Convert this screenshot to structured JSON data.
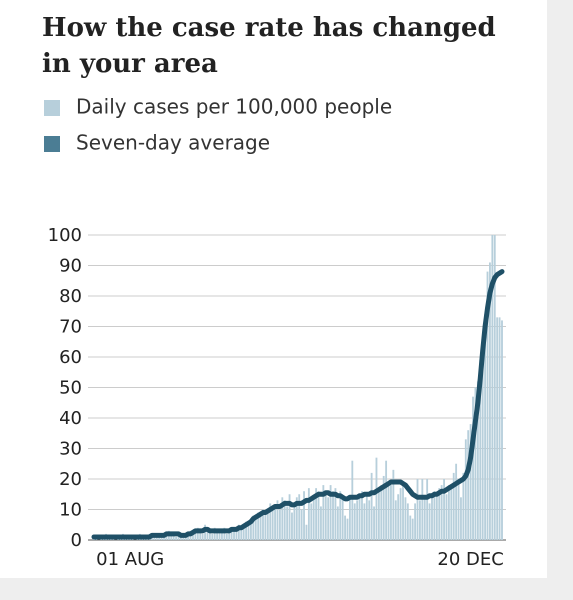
{
  "chart_data": {
    "type": "bar-line",
    "title": "How the case rate has changed in your area",
    "title_lines": [
      "How the case rate has changed",
      "in your area"
    ],
    "categories": [
      null,
      null,
      null,
      null,
      null,
      null,
      null,
      null,
      null,
      null,
      null,
      null,
      null,
      null,
      null,
      "01 AUG",
      null,
      null,
      null,
      null,
      null,
      null,
      null,
      null,
      null,
      null,
      null,
      null,
      null,
      null,
      null,
      null,
      null,
      null,
      null,
      null,
      null,
      null,
      null,
      null,
      null,
      null,
      null,
      null,
      null,
      null,
      null,
      null,
      null,
      null,
      null,
      null,
      null,
      null,
      null,
      null,
      null,
      null,
      null,
      null,
      null,
      null,
      null,
      null,
      null,
      null,
      null,
      null,
      null,
      null,
      null,
      null,
      null,
      null,
      null,
      null,
      null,
      null,
      null,
      null,
      null,
      null,
      null,
      null,
      null,
      null,
      null,
      null,
      null,
      null,
      null,
      null,
      null,
      null,
      null,
      null,
      null,
      null,
      null,
      null,
      null,
      null,
      null,
      null,
      null,
      null,
      null,
      null,
      null,
      null,
      null,
      null,
      null,
      null,
      null,
      null,
      null,
      null,
      null,
      null,
      null,
      null,
      null,
      null,
      null,
      null,
      null,
      null,
      null,
      null,
      null,
      null,
      null,
      null,
      null,
      null,
      null,
      null,
      null,
      null,
      null,
      null,
      null,
      null,
      null,
      null,
      null,
      null,
      null,
      null,
      null,
      null,
      null,
      null,
      null,
      null,
      "20 DEC",
      null,
      null,
      null,
      null,
      null,
      null,
      null,
      null,
      null,
      null,
      null,
      null,
      null
    ],
    "series": [
      {
        "name": "Daily cases per 100,000 people",
        "type": "bar",
        "color": "#b7cfdb",
        "values": [
          1,
          1,
          0,
          1,
          1,
          2,
          1,
          1,
          1,
          0,
          1,
          1,
          2,
          1,
          1,
          1,
          1,
          0,
          1,
          2,
          1,
          1,
          1,
          2,
          1,
          2,
          1,
          1,
          2,
          2,
          2,
          3,
          2,
          2,
          1,
          2,
          1,
          2,
          1,
          2,
          3,
          2,
          3,
          4,
          3,
          2,
          5,
          3,
          3,
          2,
          4,
          3,
          3,
          3,
          4,
          2,
          3,
          4,
          3,
          4,
          5,
          4,
          5,
          6,
          6,
          6,
          8,
          7,
          9,
          8,
          10,
          9,
          10,
          12,
          10,
          11,
          13,
          10,
          14,
          13,
          11,
          15,
          9,
          11,
          14,
          15,
          10,
          16,
          5,
          17,
          12,
          14,
          17,
          16,
          11,
          18,
          16,
          14,
          18,
          16,
          17,
          11,
          16,
          14,
          8,
          7,
          14,
          26,
          12,
          13,
          14,
          16,
          12,
          15,
          13,
          22,
          11,
          27,
          17,
          18,
          21,
          26,
          19,
          18,
          23,
          13,
          15,
          17,
          18,
          14,
          12,
          8,
          7,
          12,
          20,
          13,
          20,
          14,
          20,
          12,
          14,
          16,
          15,
          17,
          18,
          20,
          15,
          18,
          17,
          22,
          25,
          20,
          14,
          22,
          33,
          36,
          38,
          47,
          50,
          52,
          59,
          60,
          74,
          88,
          91,
          100,
          100,
          73,
          73,
          72
        ]
      },
      {
        "name": "Seven-day average",
        "type": "line",
        "color": "#1f5067",
        "values": [
          1,
          1,
          1,
          1,
          1,
          1,
          1,
          1,
          1,
          1,
          1,
          1,
          1,
          1,
          1,
          1,
          1,
          1,
          1,
          1,
          1,
          1,
          1,
          1,
          1.5,
          1.5,
          1.5,
          1.5,
          1.5,
          1.5,
          2,
          2,
          2,
          2,
          2,
          2,
          1.5,
          1.5,
          1.5,
          2,
          2,
          2.5,
          3,
          3,
          3,
          3,
          3.5,
          3.5,
          3,
          3,
          3,
          3,
          3,
          3,
          3,
          3,
          3,
          3.5,
          3.5,
          3.5,
          4,
          4,
          4.5,
          5,
          5.5,
          6,
          7,
          7.5,
          8,
          8.5,
          9,
          9,
          9.5,
          10,
          10.5,
          11,
          11,
          11,
          11.5,
          12,
          12,
          12,
          11.5,
          11.5,
          12,
          12,
          12,
          12.5,
          13,
          13,
          13.5,
          14,
          14.5,
          15,
          15,
          15,
          15.5,
          15.5,
          15,
          15,
          15,
          14.5,
          14.5,
          14,
          13.5,
          13.5,
          14,
          14,
          14,
          14,
          14.5,
          14.5,
          15,
          15,
          15,
          15.5,
          15.5,
          16,
          16.5,
          17,
          17.5,
          18,
          18.5,
          19,
          19,
          19,
          19,
          19,
          18.5,
          18,
          17,
          16,
          15,
          14.5,
          14,
          14,
          14,
          14,
          14,
          14.5,
          14.5,
          15,
          15,
          15.5,
          16,
          16,
          16.5,
          17,
          17.5,
          18,
          18.5,
          19,
          19.5,
          20,
          21,
          23,
          27,
          33,
          39,
          45,
          53,
          62,
          70,
          76,
          81,
          84,
          86,
          87,
          87.5,
          88
        ]
      }
    ],
    "legend_swatch_colors": [
      "#b7cfdb",
      "#4b7d94"
    ],
    "ylim": [
      0,
      100
    ],
    "yticks": [
      0,
      10,
      20,
      30,
      40,
      50,
      60,
      70,
      80,
      90,
      100
    ],
    "grid": true
  }
}
